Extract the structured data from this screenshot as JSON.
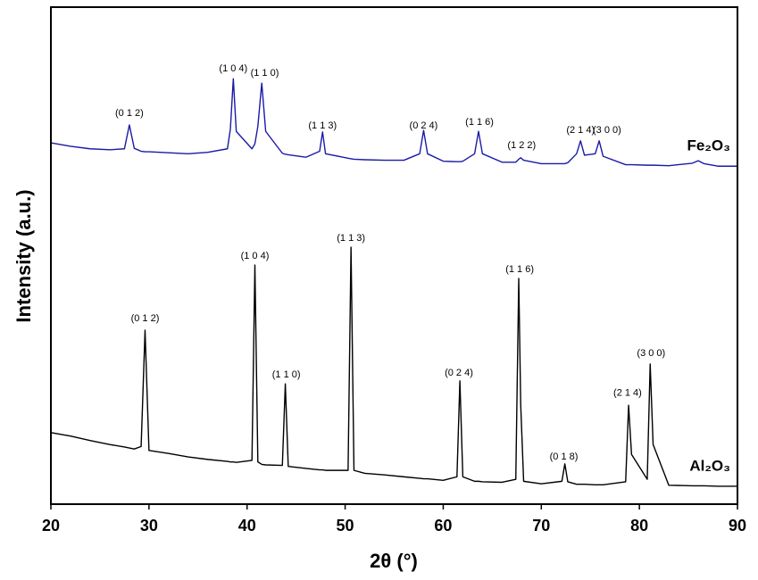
{
  "chart_data": {
    "type": "line",
    "xlabel": "2θ (°)",
    "ylabel": "Intensity (a.u.)",
    "xlim": [
      20,
      90
    ],
    "ylim": [
      0,
      100
    ],
    "xticks": [
      20,
      30,
      40,
      50,
      60,
      70,
      80,
      90
    ],
    "x": [
      20,
      22,
      24,
      26,
      27.5,
      28,
      28.5,
      29.2,
      29.6,
      30,
      32,
      34,
      36,
      38,
      38.3,
      38.6,
      38.9,
      40.5,
      40.8,
      41.1,
      41.5,
      41.9,
      43.6,
      43.9,
      44.2,
      46,
      47.4,
      47.7,
      48,
      50.3,
      50.6,
      50.9,
      52,
      54,
      56,
      57.6,
      58,
      58.4,
      60,
      61.4,
      61.7,
      62,
      63.2,
      63.6,
      64,
      66,
      67.4,
      67.7,
      67.9,
      68.2,
      70,
      72.1,
      72.4,
      72.7,
      73.6,
      74,
      74.4,
      75.5,
      75.9,
      76.3,
      78.6,
      78.9,
      79.2,
      80.8,
      81.1,
      81.4,
      83,
      85.4,
      86,
      86.6,
      88,
      90
    ],
    "series": [
      {
        "name": "Fe₂O₃",
        "color": "#1a1aa6",
        "values": [
          72.7,
          72.0,
          71.5,
          71.3,
          71.5,
          76.3,
          71.6,
          71.0,
          70.9,
          70.9,
          70.7,
          70.5,
          70.8,
          71.5,
          75.5,
          85.6,
          75,
          71.5,
          72.5,
          76,
          84.7,
          75,
          70.6,
          70.4,
          70.3,
          69.8,
          71,
          74.9,
          70.5,
          69.6,
          69.5,
          69.4,
          69.3,
          69.2,
          69.2,
          70.5,
          75.2,
          70.5,
          69,
          68.9,
          68.9,
          69,
          70.5,
          75.0,
          70.5,
          68.8,
          68.8,
          69.4,
          69.7,
          69.2,
          68.5,
          68.5,
          68.5,
          68.7,
          70.5,
          73.1,
          70.2,
          70.5,
          73.1,
          70,
          68.3,
          68.3,
          68.3,
          68.2,
          68.2,
          68.2,
          68.1,
          68.6,
          69.1,
          68.5,
          68,
          68
        ]
      },
      {
        "name": "Al₂O₃",
        "color": "#000000",
        "values": [
          14.4,
          13.7,
          12.8,
          12.0,
          11.5,
          11.3,
          11.1,
          11.6,
          35.0,
          10.8,
          10.2,
          9.5,
          9.0,
          8.6,
          8.5,
          8.5,
          8.4,
          8.8,
          48.1,
          8.5,
          8.0,
          7.9,
          7.8,
          24.2,
          7.6,
          7.2,
          6.9,
          6.9,
          6.8,
          6.8,
          51.7,
          6.8,
          6.2,
          5.9,
          5.5,
          5.2,
          5.1,
          5.1,
          4.8,
          5.5,
          24.8,
          5.5,
          4.6,
          4.6,
          4.5,
          4.4,
          5.0,
          45.4,
          20,
          4.6,
          4.1,
          4.6,
          8.1,
          4.5,
          4.0,
          4.0,
          4.0,
          3.9,
          3.9,
          3.9,
          4.5,
          19.9,
          10,
          5,
          28.2,
          12,
          3.8,
          3.7,
          3.7,
          3.7,
          3.6,
          3.6
        ]
      }
    ],
    "annotations": [
      {
        "text": "(0 1 2)",
        "x": 28.0,
        "y": 78.6
      },
      {
        "text": "(1 0 4)",
        "x": 38.6,
        "y": 87.6
      },
      {
        "text": "(1 1 0)",
        "x": 41.8,
        "y": 86.7
      },
      {
        "text": "(1 1 3)",
        "x": 47.7,
        "y": 76.1
      },
      {
        "text": "(0 2 4)",
        "x": 58.0,
        "y": 76.1
      },
      {
        "text": "(1 1 6)",
        "x": 63.7,
        "y": 76.8
      },
      {
        "text": "(1 2 2)",
        "x": 68.0,
        "y": 72.2
      },
      {
        "text": "(2 1 4)",
        "x": 74.0,
        "y": 75.2
      },
      {
        "text": "(3 0 0)",
        "x": 76.7,
        "y": 75.2
      },
      {
        "text": "(0 1 2)",
        "x": 29.6,
        "y": 37.3
      },
      {
        "text": "(1 0 4)",
        "x": 40.8,
        "y": 49.9
      },
      {
        "text": "(1 1 0)",
        "x": 44.0,
        "y": 26.0
      },
      {
        "text": "(1 1 3)",
        "x": 50.6,
        "y": 53.5
      },
      {
        "text": "(0 2 4)",
        "x": 61.6,
        "y": 26.4
      },
      {
        "text": "(1 1 6)",
        "x": 67.8,
        "y": 47.2
      },
      {
        "text": "(0 1 8)",
        "x": 72.3,
        "y": 9.5
      },
      {
        "text": "(2 1 4)",
        "x": 78.8,
        "y": 22.3
      },
      {
        "text": "(3 0 0)",
        "x": 81.2,
        "y": 30.3
      }
    ]
  }
}
